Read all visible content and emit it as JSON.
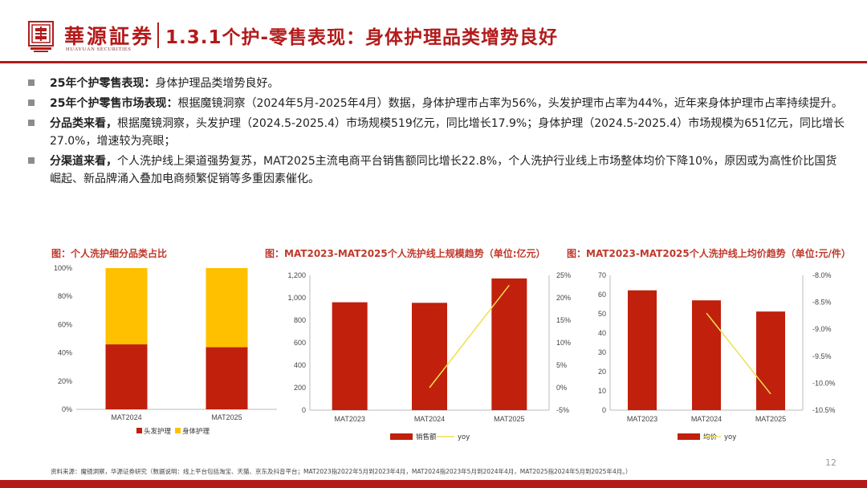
{
  "header": {
    "brand_cn": "華源証券",
    "brand_en": "HUAYUAN SECURITIES",
    "title": "1.3.1个护-零售表现：身体护理品类增势良好"
  },
  "bullets": [
    {
      "lead": "25年个护零售表现：",
      "text": "身体护理品类增势良好。"
    },
    {
      "lead": "25年个护零售市场表现：",
      "text": "根据魔镜洞察（2024年5月-2025年4月）数据，身体护理市占率为56%，头发护理市占率为44%，近年来身体护理市占率持续提升。"
    },
    {
      "lead": "分品类来看，",
      "text": "根据魔镜洞察，头发护理（2024.5-2025.4）市场规模519亿元，同比增长17.9%；身体护理（2024.5-2025.4）市场规模为651亿元，同比增长27.0%，增速较为亮眼；"
    },
    {
      "lead": "分渠道来看，",
      "text": "个人洗护线上渠道强势复苏，MAT2025主流电商平台销售额同比增长22.8%，个人洗护行业线上市场整体均价下降10%，原因或为高性价比国货崛起、新品牌涌入叠加电商频繁促销等多重因素催化。"
    }
  ],
  "colors": {
    "brand_red": "#b31b1b",
    "bar_red": "#c0200c",
    "bar_yellow": "#ffc000",
    "line_yellow": "#f0e050"
  },
  "chart_data": [
    {
      "type": "bar",
      "stacked": true,
      "title": "图：个人洗护细分品类占比",
      "categories": [
        "MAT2024",
        "MAT2025"
      ],
      "series": [
        {
          "name": "头发护理",
          "values": [
            46,
            44
          ]
        },
        {
          "name": "身体护理",
          "values": [
            54,
            56
          ]
        }
      ],
      "ylim": [
        0,
        100
      ],
      "yticks": [
        "0%",
        "20%",
        "40%",
        "60%",
        "80%",
        "100%"
      ]
    },
    {
      "type": "bar",
      "title": "图：MAT2023-MAT2025个人洗护线上规模趋势（单位:亿元）",
      "categories": [
        "MAT2023",
        "MAT2024",
        "MAT2025"
      ],
      "series": [
        {
          "name": "销售额",
          "axis": "left",
          "kind": "bar",
          "values": [
            960,
            955,
            1172
          ]
        },
        {
          "name": "yoy",
          "axis": "right",
          "kind": "line",
          "values": [
            null,
            0,
            22.8
          ]
        }
      ],
      "ylim": [
        0,
        1200
      ],
      "yticks": [
        "0",
        "200",
        "400",
        "600",
        "800",
        "1,000",
        "1,200"
      ],
      "y2lim": [
        -5,
        25
      ],
      "y2ticks": [
        "-5%",
        "0%",
        "5%",
        "10%",
        "15%",
        "20%",
        "25%"
      ]
    },
    {
      "type": "bar",
      "title": "图：MAT2023-MAT2025个人洗护线上均价趋势（单位:元/件）",
      "categories": [
        "MAT2023",
        "MAT2024",
        "MAT2025"
      ],
      "series": [
        {
          "name": "均价",
          "axis": "left",
          "kind": "bar",
          "values": [
            62.2,
            57,
            51.2
          ]
        },
        {
          "name": "yoy",
          "axis": "right",
          "kind": "line",
          "values": [
            null,
            -8.7,
            -10.2
          ]
        }
      ],
      "ylim": [
        0,
        70
      ],
      "yticks": [
        "0",
        "10",
        "20",
        "30",
        "40",
        "50",
        "60",
        "70"
      ],
      "y2lim": [
        -10.5,
        -8.0
      ],
      "y2ticks": [
        "-10.5%",
        "-10.0%",
        "-9.5%",
        "-9.0%",
        "-8.5%",
        "-8.0%"
      ]
    }
  ],
  "footer": {
    "note": "资料来源：魔镜洞察，华源证券研究（数据说明：线上平台包括淘宝、天猫、京东及抖音平台；MAT2023指2022年5月到2023年4月，MAT2024指2023年5月到2024年4月，MAT2025指2024年5月到2025年4月。）",
    "page": "12"
  }
}
